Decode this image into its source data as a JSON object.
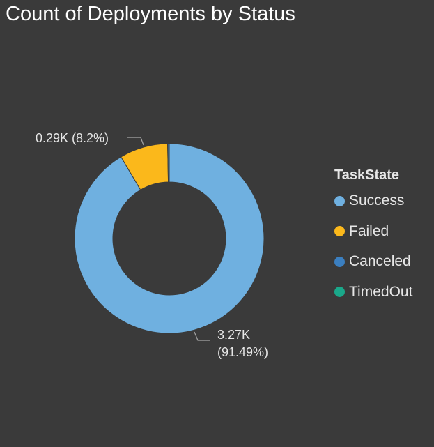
{
  "title": "Count of Deployments by Status",
  "chart_data": {
    "type": "pie",
    "subtype": "donut",
    "title": "Count of Deployments by Status",
    "legend_title": "TaskState",
    "legend_position": "right",
    "categories": [
      "Success",
      "Failed",
      "Canceled",
      "TimedOut"
    ],
    "values": [
      3270,
      294,
      7,
      3
    ],
    "colors": [
      "#6fb0e0",
      "#fbb81b",
      "#3b7fc0",
      "#1aa88a"
    ],
    "data_labels": [
      {
        "category": "Success",
        "text": "3.27K",
        "text2": "(91.49%)"
      },
      {
        "category": "Failed",
        "text": "0.29K (8.2%)"
      }
    ]
  }
}
